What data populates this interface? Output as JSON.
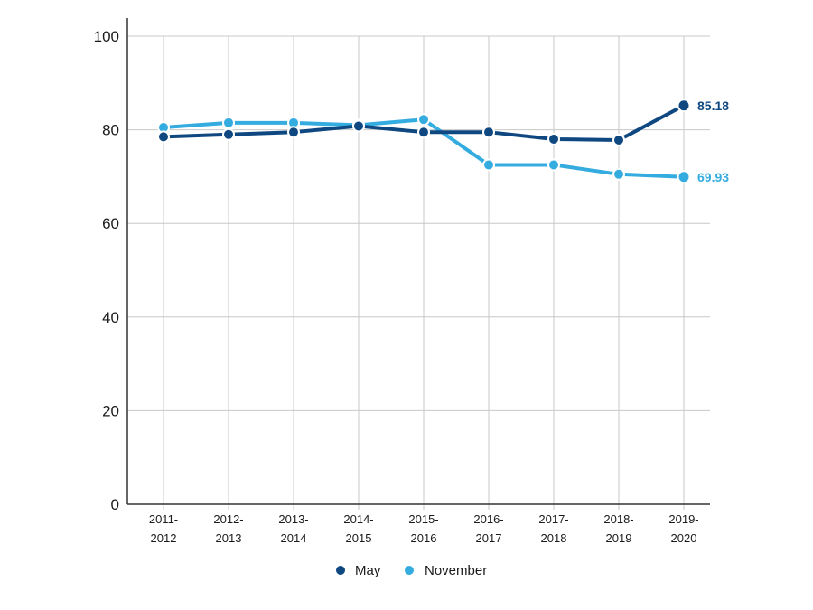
{
  "chart_data": {
    "type": "line",
    "x": [
      "2011-2012",
      "2012-2013",
      "2013-2014",
      "2014-2015",
      "2015-2016",
      "2016-2017",
      "2017-2018",
      "2018-2019",
      "2019-2020"
    ],
    "x_tick_labels": [
      [
        "2011-",
        "2012"
      ],
      [
        "2012-",
        "2013"
      ],
      [
        "2013-",
        "2014"
      ],
      [
        "2014-",
        "2015"
      ],
      [
        "2015-",
        "2016"
      ],
      [
        "2016-",
        "2017"
      ],
      [
        "2017-",
        "2018"
      ],
      [
        "2018-",
        "2019"
      ],
      [
        "2019-",
        "2020"
      ]
    ],
    "series": [
      {
        "name": "May",
        "color": "#0f4880",
        "values": [
          78.5,
          79.0,
          79.5,
          80.8,
          79.5,
          79.5,
          78.0,
          77.8,
          85.18
        ],
        "end_label": "85.18"
      },
      {
        "name": "November",
        "color": "#35ace0",
        "values": [
          80.5,
          81.5,
          81.5,
          81.0,
          82.2,
          72.5,
          72.5,
          70.5,
          69.93
        ],
        "end_label": "69.93"
      }
    ],
    "ylim": [
      0,
      100
    ],
    "y_ticks": [
      0,
      20,
      40,
      60,
      80,
      100
    ],
    "grid": true,
    "legend": "bottom-center",
    "title": "",
    "xlabel": "",
    "ylabel": ""
  }
}
